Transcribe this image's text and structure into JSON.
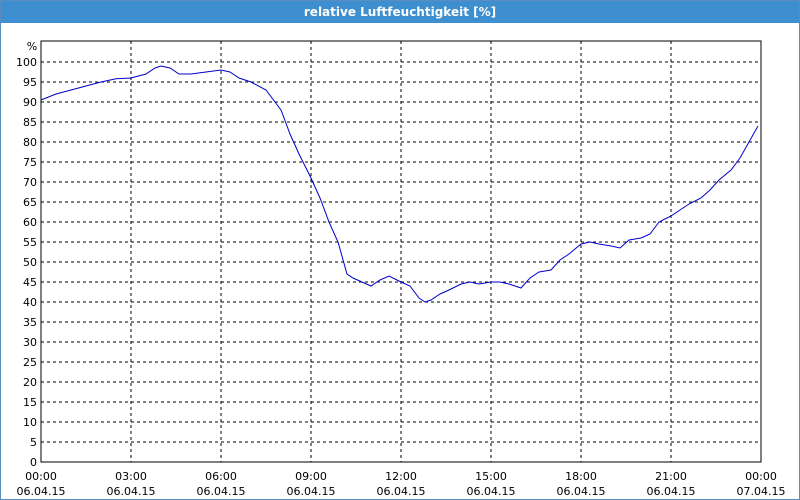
{
  "window": {
    "title": "relative Luftfeuchtigkeit [%]"
  },
  "colors": {
    "titlebar": "#3e8fcf",
    "series": "#0000cc",
    "grid": "#000000"
  },
  "chart_data": {
    "type": "line",
    "title": "relative Luftfeuchtigkeit [%]",
    "ylabel": "%",
    "xlabel": "",
    "ylim": [
      0,
      100
    ],
    "xlim_hours": [
      0,
      24
    ],
    "grid": true,
    "y_ticks": [
      "0",
      "5",
      "10",
      "15",
      "20",
      "25",
      "30",
      "35",
      "40",
      "45",
      "50",
      "55",
      "60",
      "65",
      "70",
      "75",
      "80",
      "85",
      "90",
      "95",
      "100"
    ],
    "x_ticks": [
      {
        "time": "00:00",
        "date": "06.04.15",
        "hour": 0
      },
      {
        "time": "03:00",
        "date": "06.04.15",
        "hour": 3
      },
      {
        "time": "06:00",
        "date": "06.04.15",
        "hour": 6
      },
      {
        "time": "09:00",
        "date": "06.04.15",
        "hour": 9
      },
      {
        "time": "12:00",
        "date": "06.04.15",
        "hour": 12
      },
      {
        "time": "15:00",
        "date": "06.04.15",
        "hour": 15
      },
      {
        "time": "18:00",
        "date": "06.04.15",
        "hour": 18
      },
      {
        "time": "21:00",
        "date": "06.04.15",
        "hour": 21
      },
      {
        "time": "00:00",
        "date": "07.04.15",
        "hour": 24
      }
    ],
    "series": [
      {
        "x": [
          0.0,
          0.5,
          1.0,
          1.5,
          2.0,
          2.5,
          3.0,
          3.5,
          3.8,
          4.0,
          4.3,
          4.6,
          5.0,
          5.5,
          6.0,
          6.3,
          6.6,
          7.0,
          7.5,
          8.0,
          8.3,
          8.6,
          9.0,
          9.3,
          9.6,
          9.9,
          10.2,
          10.4,
          10.7,
          11.0,
          11.3,
          11.6,
          12.0,
          12.3,
          12.6,
          12.8,
          13.0,
          13.3,
          13.6,
          14.0,
          14.3,
          14.6,
          15.0,
          15.3,
          15.6,
          16.0,
          16.3,
          16.6,
          17.0,
          17.3,
          17.6,
          18.0,
          18.3,
          18.6,
          19.0,
          19.3,
          19.6,
          20.0,
          20.3,
          20.6,
          21.0,
          21.3,
          21.6,
          22.0,
          22.3,
          22.6,
          23.0,
          23.3,
          23.6,
          23.9
        ],
        "y": [
          90.5,
          92,
          93,
          94,
          95,
          95.8,
          96,
          97,
          98.5,
          99,
          98.5,
          97,
          97,
          97.5,
          98,
          97.5,
          96,
          95,
          93,
          88,
          82,
          77,
          71,
          66,
          60,
          55,
          47,
          46,
          45,
          44,
          45.5,
          46.5,
          45,
          44,
          41,
          40,
          40.5,
          42,
          43,
          44.5,
          45,
          44.5,
          45,
          45,
          44.5,
          43.5,
          46,
          47.5,
          48,
          50.5,
          52,
          54.5,
          55,
          54.5,
          54,
          53.5,
          55.5,
          56,
          57,
          60,
          61.5,
          63,
          64.5,
          66,
          68,
          70.5,
          73,
          76,
          80,
          84
        ]
      }
    ]
  }
}
